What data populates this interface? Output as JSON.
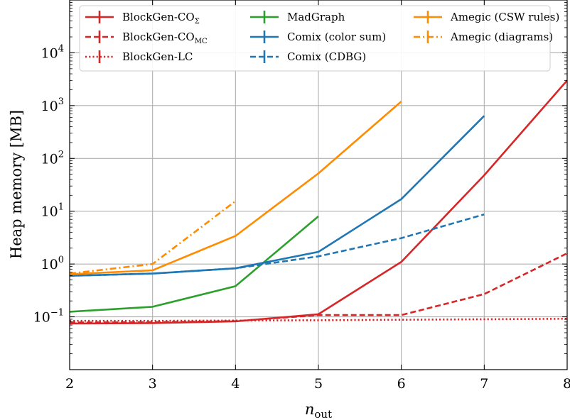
{
  "chart_data": {
    "type": "line",
    "title": "",
    "xlabel": "n",
    "xlabel_sub": "out",
    "ylabel": "Heap memory [MB]",
    "xlim": [
      2,
      8
    ],
    "ylim": [
      0.01,
      100000
    ],
    "yscale": "log",
    "grid": true,
    "legend_position": "top",
    "x_ticks": [
      "2",
      "3",
      "4",
      "5",
      "6",
      "7",
      "8"
    ],
    "y_ticks": [
      {
        "base": "10",
        "exp": "−1",
        "value": 0.1
      },
      {
        "base": "10",
        "exp": "0",
        "value": 1
      },
      {
        "base": "10",
        "exp": "1",
        "value": 10
      },
      {
        "base": "10",
        "exp": "2",
        "value": 100
      },
      {
        "base": "10",
        "exp": "3",
        "value": 1000
      },
      {
        "base": "10",
        "exp": "4",
        "value": 10000
      }
    ],
    "series": [
      {
        "name": "BlockGen-CO",
        "name_sub": "Σ",
        "color": "#d62728",
        "dash": "solid",
        "x": [
          2,
          3,
          4,
          5,
          6,
          7,
          8
        ],
        "values": [
          0.075,
          0.076,
          0.082,
          0.112,
          1.1,
          48,
          3000
        ]
      },
      {
        "name": "BlockGen-CO",
        "name_sub": "MC",
        "color": "#d62728",
        "dash": "dashed",
        "x": [
          2,
          3,
          4,
          5,
          6,
          7,
          8
        ],
        "values": [
          0.078,
          0.079,
          0.083,
          0.108,
          0.108,
          0.27,
          1.6
        ]
      },
      {
        "name": "BlockGen-LC",
        "color": "#d62728",
        "dash": "dotted",
        "x": [
          2,
          3,
          4,
          5,
          6,
          7,
          8
        ],
        "values": [
          0.084,
          0.084,
          0.085,
          0.086,
          0.088,
          0.09,
          0.092
        ]
      },
      {
        "name": "MadGraph",
        "color": "#2ca02c",
        "dash": "solid",
        "x": [
          2,
          3,
          4,
          5
        ],
        "values": [
          0.125,
          0.155,
          0.38,
          8.0
        ]
      },
      {
        "name": "Comix (color sum)",
        "color": "#1f77b4",
        "dash": "solid",
        "x": [
          2,
          3,
          4,
          5,
          6,
          7
        ],
        "values": [
          0.6,
          0.66,
          0.83,
          1.7,
          17,
          640
        ]
      },
      {
        "name": "Comix (CDBG)",
        "color": "#1f77b4",
        "dash": "dashed",
        "x": [
          2,
          3,
          4,
          5,
          6,
          7
        ],
        "values": [
          0.6,
          0.66,
          0.83,
          1.4,
          3.1,
          8.7
        ]
      },
      {
        "name": "Amegic (CSW rules)",
        "color": "#ff8c00",
        "dash": "solid",
        "x": [
          2,
          3,
          4,
          5,
          6
        ],
        "values": [
          0.64,
          0.76,
          3.4,
          52,
          1200
        ]
      },
      {
        "name": "Amegic (diagrams)",
        "color": "#ff8c00",
        "dash": "dashdot",
        "x": [
          2,
          3,
          4
        ],
        "values": [
          0.66,
          1.0,
          15.5
        ]
      }
    ]
  }
}
